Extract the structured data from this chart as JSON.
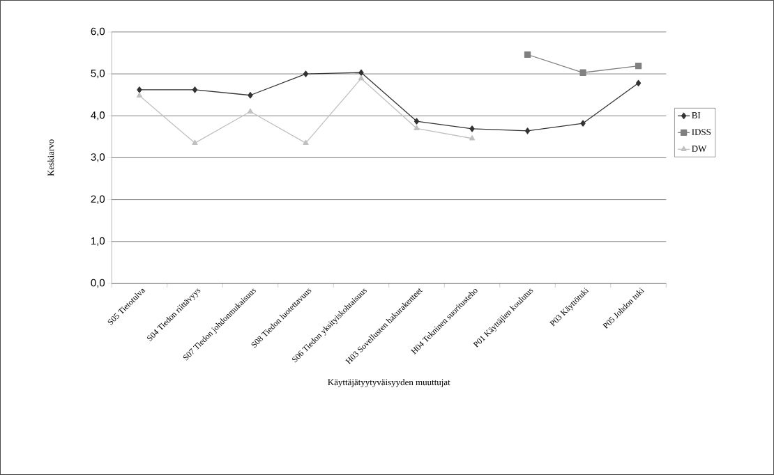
{
  "chart_data": {
    "type": "line",
    "xlabel": "Käyttäjätyytyväisyyden muuttujat",
    "ylabel": "Keskiarvo",
    "categories": [
      "S05 Tietotulva",
      "S04 Tiedon riittävyys",
      "S07 Tiedon johdonmukaisuus",
      "S08 Tiedon luotettavuus",
      "S06 Tiedon yksityiskohtaisuus",
      "H03 Sovellusten hakurakenteet",
      "H04 Tekninen suoritusteho",
      "P01 Käyttäjien koulutus",
      "P03 Käyttötuki",
      "P05 Johdon tuki"
    ],
    "series": [
      {
        "name": "BI",
        "color": "#333333",
        "marker": "diamond",
        "values": [
          4.62,
          4.62,
          4.49,
          5.0,
          5.03,
          3.87,
          3.69,
          3.64,
          3.82,
          4.78
        ]
      },
      {
        "name": "IDSS",
        "color": "#808080",
        "marker": "square",
        "values": [
          null,
          null,
          null,
          null,
          null,
          null,
          null,
          5.46,
          5.03,
          5.19
        ]
      },
      {
        "name": "DW",
        "color": "#c0c0c0",
        "marker": "triangle",
        "values": [
          4.48,
          3.35,
          4.1,
          3.35,
          4.89,
          3.7,
          3.46,
          null,
          null,
          null
        ]
      }
    ],
    "ylim": [
      0,
      6
    ],
    "yticks": [
      {
        "value": 0,
        "label": "0,0"
      },
      {
        "value": 1,
        "label": "1,0"
      },
      {
        "value": 2,
        "label": "2,0"
      },
      {
        "value": 3,
        "label": "3,0"
      },
      {
        "value": 4,
        "label": "4,0"
      },
      {
        "value": 5,
        "label": "5,0"
      },
      {
        "value": 6,
        "label": "6,0"
      }
    ],
    "grid": "y",
    "legend": "right",
    "line_style": "solid"
  }
}
